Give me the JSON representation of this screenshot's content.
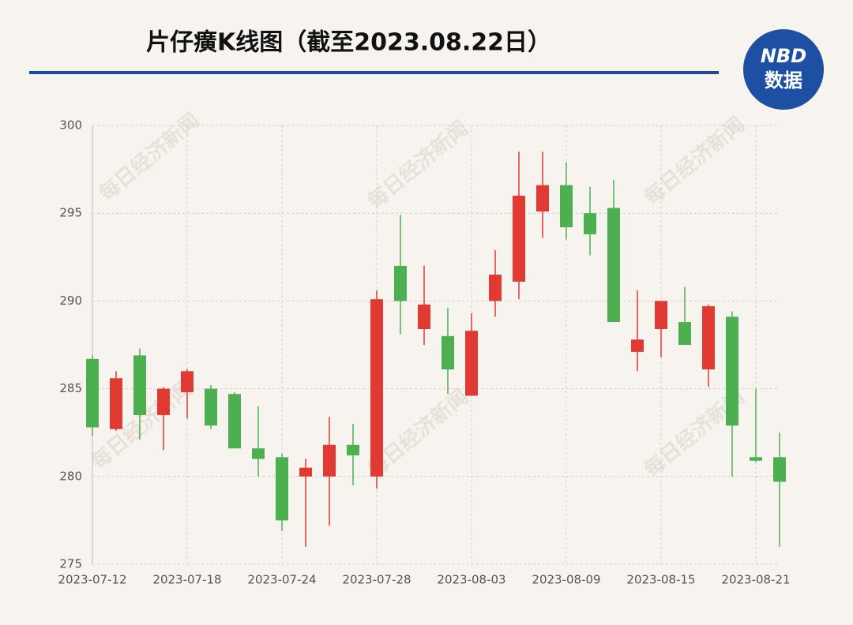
{
  "chart_data": {
    "type": "candlestick",
    "title": "片仔癀K线图（截至2023.08.22日）",
    "logo": {
      "top": "NBD",
      "bottom": "数据"
    },
    "watermark": "每日经济新闻",
    "categories": [
      "2023-07-12",
      null,
      null,
      null,
      "2023-07-18",
      null,
      null,
      null,
      "2023-07-24",
      null,
      null,
      null,
      "2023-07-28",
      null,
      null,
      null,
      "2023-08-03",
      null,
      null,
      null,
      "2023-08-09",
      null,
      null,
      null,
      "2023-08-15",
      null,
      null,
      null,
      "2023-08-21",
      null
    ],
    "open": [
      286.7,
      282.7,
      286.9,
      283.5,
      284.8,
      285.0,
      284.7,
      281.6,
      281.1,
      280.0,
      280.0,
      281.8,
      280.0,
      292.0,
      288.4,
      288.0,
      284.6,
      290.0,
      291.1,
      295.1,
      296.6,
      295.0,
      295.3,
      287.1,
      288.4,
      288.8,
      286.1,
      289.1,
      281.1,
      281.1
    ],
    "high": [
      286.9,
      286.0,
      287.3,
      285.1,
      286.1,
      285.2,
      284.8,
      284.0,
      281.3,
      281.0,
      283.4,
      283.0,
      290.6,
      294.9,
      292.0,
      289.6,
      289.3,
      292.9,
      298.5,
      298.5,
      297.9,
      296.5,
      296.9,
      290.6,
      290.0,
      290.8,
      289.8,
      289.4,
      285.0,
      282.5
    ],
    "low": [
      282.3,
      282.6,
      282.1,
      281.5,
      283.3,
      282.7,
      281.6,
      280.0,
      276.9,
      276.0,
      277.2,
      279.5,
      279.3,
      288.1,
      287.5,
      284.7,
      284.6,
      289.1,
      290.1,
      293.6,
      293.5,
      292.6,
      288.8,
      286.0,
      286.8,
      287.5,
      285.1,
      280.0,
      280.8,
      276.0
    ],
    "close": [
      282.8,
      285.6,
      283.5,
      285.0,
      286.0,
      282.9,
      281.6,
      281.0,
      277.5,
      280.5,
      281.8,
      281.2,
      290.1,
      290.0,
      289.8,
      286.1,
      288.3,
      291.5,
      296.0,
      296.6,
      294.2,
      293.8,
      288.8,
      287.8,
      290.0,
      287.5,
      289.7,
      282.9,
      280.9,
      279.7
    ],
    "up_color": "#e03a33",
    "down_color": "#4caf50",
    "ylim": [
      275,
      300
    ],
    "yticks": [
      275,
      280,
      285,
      290,
      295,
      300
    ],
    "grid": true
  }
}
